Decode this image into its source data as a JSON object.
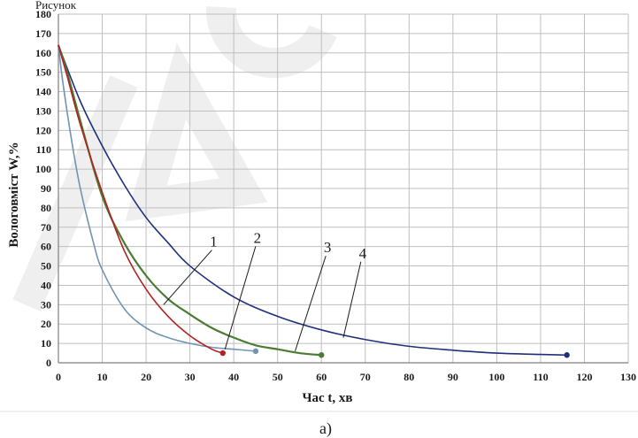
{
  "page": {
    "top_fragment": "Рисунок",
    "caption": "а)"
  },
  "colors": {
    "grid": "#bfbfbf",
    "axis": "#7f7f7f",
    "curve_1": "#b22222",
    "curve_2": "#6f94b5",
    "curve_3": "#4b7c33",
    "curve_4": "#1f2f7a",
    "watermark": "#d8d8d8"
  },
  "chart_data": {
    "type": "line",
    "title": "",
    "xlabel": "Час t, хв",
    "ylabel": "Вологовміст  W,%",
    "xlim": [
      0,
      130
    ],
    "ylim": [
      0,
      180
    ],
    "x_ticks": [
      "0",
      "10",
      "20",
      "30",
      "40",
      "50",
      "60",
      "70",
      "80",
      "90",
      "100",
      "110",
      "120",
      "130"
    ],
    "y_ticks": [
      "0",
      "10",
      "20",
      "30",
      "40",
      "50",
      "60",
      "70",
      "80",
      "90",
      "100",
      "110",
      "120",
      "130",
      "140",
      "150",
      "160",
      "170",
      "180"
    ],
    "grid": true,
    "legend": "none",
    "series": [
      {
        "name": "1",
        "color": "#b22222",
        "marker_end": true,
        "points": [
          [
            0,
            164
          ],
          [
            2,
            148
          ],
          [
            5,
            123
          ],
          [
            10,
            88
          ],
          [
            15,
            58
          ],
          [
            20,
            38
          ],
          [
            25,
            24
          ],
          [
            30,
            14
          ],
          [
            35,
            7
          ],
          [
            37.5,
            5
          ]
        ]
      },
      {
        "name": "2",
        "color": "#6f94b5",
        "marker_end": true,
        "points": [
          [
            0,
            164
          ],
          [
            1,
            145
          ],
          [
            3,
            115
          ],
          [
            5,
            90
          ],
          [
            8,
            62
          ],
          [
            10,
            48
          ],
          [
            15,
            28
          ],
          [
            20,
            18
          ],
          [
            25,
            13
          ],
          [
            30,
            10
          ],
          [
            35,
            8
          ],
          [
            40,
            7
          ],
          [
            45,
            6
          ]
        ]
      },
      {
        "name": "3",
        "color": "#4b7c33",
        "marker_end": true,
        "points": [
          [
            0,
            164
          ],
          [
            2,
            150
          ],
          [
            5,
            125
          ],
          [
            10,
            86
          ],
          [
            15,
            62
          ],
          [
            20,
            45
          ],
          [
            25,
            33
          ],
          [
            30,
            25
          ],
          [
            35,
            18
          ],
          [
            40,
            13
          ],
          [
            45,
            9
          ],
          [
            50,
            7
          ],
          [
            55,
            5
          ],
          [
            60,
            4
          ]
        ]
      },
      {
        "name": "4",
        "color": "#1f2f7a",
        "marker_end": true,
        "points": [
          [
            0,
            164
          ],
          [
            5,
            135
          ],
          [
            10,
            112
          ],
          [
            15,
            92
          ],
          [
            20,
            75
          ],
          [
            25,
            62
          ],
          [
            30,
            50
          ],
          [
            40,
            34
          ],
          [
            50,
            24
          ],
          [
            60,
            17
          ],
          [
            70,
            12
          ],
          [
            80,
            8.5
          ],
          [
            90,
            6.5
          ],
          [
            100,
            5
          ],
          [
            110,
            4.3
          ],
          [
            116,
            4
          ]
        ]
      }
    ],
    "annotations": [
      {
        "text": "1",
        "target": [
          24,
          30
        ],
        "label_at": [
          35,
          60
        ]
      },
      {
        "text": "2",
        "target": [
          38,
          7
        ],
        "label_at": [
          45,
          62
        ]
      },
      {
        "text": "3",
        "target": [
          54,
          6
        ],
        "label_at": [
          61,
          57
        ]
      },
      {
        "text": "4",
        "target": [
          65,
          13
        ],
        "label_at": [
          69,
          54
        ]
      }
    ]
  }
}
